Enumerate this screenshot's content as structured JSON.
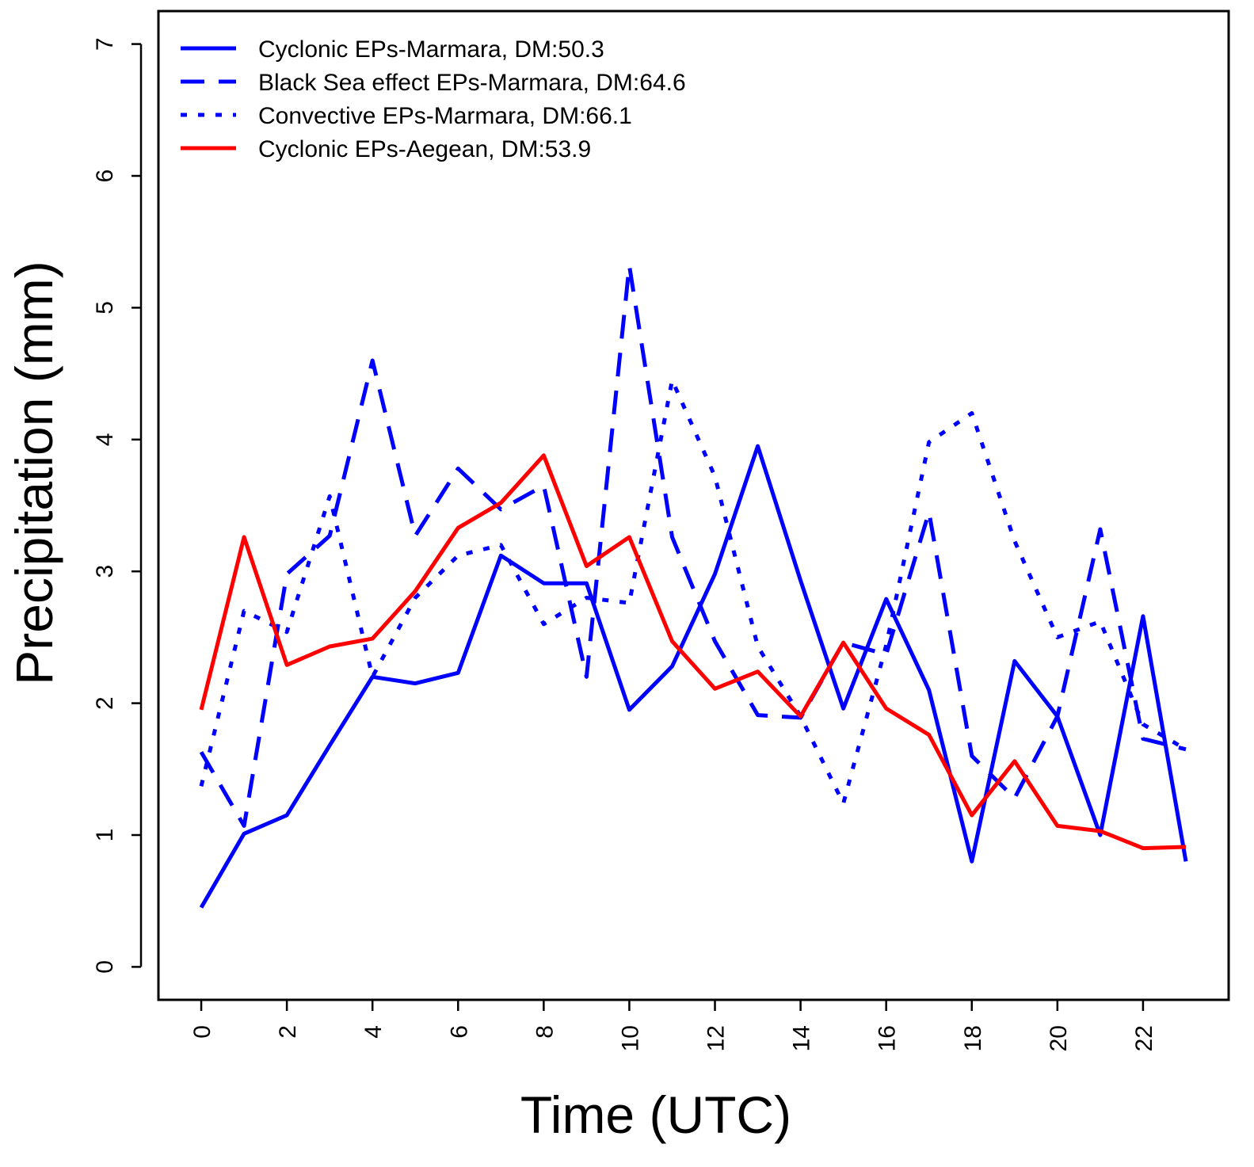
{
  "chart_data": {
    "type": "line",
    "title": "",
    "xlabel": "Time (UTC)",
    "ylabel": "Precipitation (mm)",
    "xlim": [
      -1,
      24
    ],
    "ylim": [
      -0.25,
      7.25
    ],
    "x": [
      0,
      1,
      2,
      3,
      4,
      5,
      6,
      7,
      8,
      9,
      10,
      11,
      12,
      13,
      14,
      15,
      16,
      17,
      18,
      19,
      20,
      21,
      22,
      23
    ],
    "x_ticks": [
      0,
      2,
      4,
      6,
      8,
      10,
      12,
      14,
      16,
      18,
      20,
      22
    ],
    "y_ticks": [
      0,
      1,
      2,
      3,
      4,
      5,
      6,
      7
    ],
    "grid": false,
    "legend_position": "top-left",
    "series": [
      {
        "name": "Cyclonic EPs-Marmara, DM:50.3",
        "color": "#0000ff",
        "dash": "solid",
        "values": [
          0.45,
          1.01,
          1.15,
          1.68,
          2.2,
          2.15,
          2.23,
          3.12,
          2.91,
          2.91,
          1.95,
          2.28,
          2.98,
          3.95,
          2.93,
          1.96,
          2.79,
          2.1,
          0.8,
          2.32,
          1.9,
          1.0,
          2.66,
          0.8
        ]
      },
      {
        "name": "Black Sea effect EPs-Marmara, DM:64.6",
        "color": "#0000ff",
        "dash": "dashed",
        "values": [
          1.63,
          1.07,
          2.98,
          3.27,
          4.6,
          3.27,
          3.78,
          3.47,
          3.65,
          2.2,
          5.32,
          3.26,
          2.47,
          1.91,
          1.89,
          2.46,
          2.37,
          3.45,
          1.6,
          1.28,
          1.9,
          3.32,
          1.73,
          1.65
        ]
      },
      {
        "name": "Convective EPs-Marmara, DM:66.1",
        "color": "#0000ff",
        "dash": "dotted",
        "values": [
          1.37,
          2.7,
          2.54,
          3.57,
          2.2,
          2.8,
          3.12,
          3.2,
          2.6,
          2.8,
          2.76,
          4.45,
          3.72,
          2.43,
          1.9,
          1.24,
          2.44,
          3.98,
          4.2,
          3.23,
          2.5,
          2.62,
          1.84,
          1.65
        ]
      },
      {
        "name": "Cyclonic EPs-Aegean, DM:53.9",
        "color": "#ff0000",
        "dash": "solid",
        "values": [
          1.95,
          3.26,
          2.29,
          2.43,
          2.49,
          2.85,
          3.33,
          3.52,
          3.88,
          3.04,
          3.26,
          2.47,
          2.11,
          2.24,
          1.9,
          2.46,
          1.96,
          1.76,
          1.15,
          1.56,
          1.07,
          1.03,
          0.9,
          0.91
        ]
      }
    ]
  }
}
